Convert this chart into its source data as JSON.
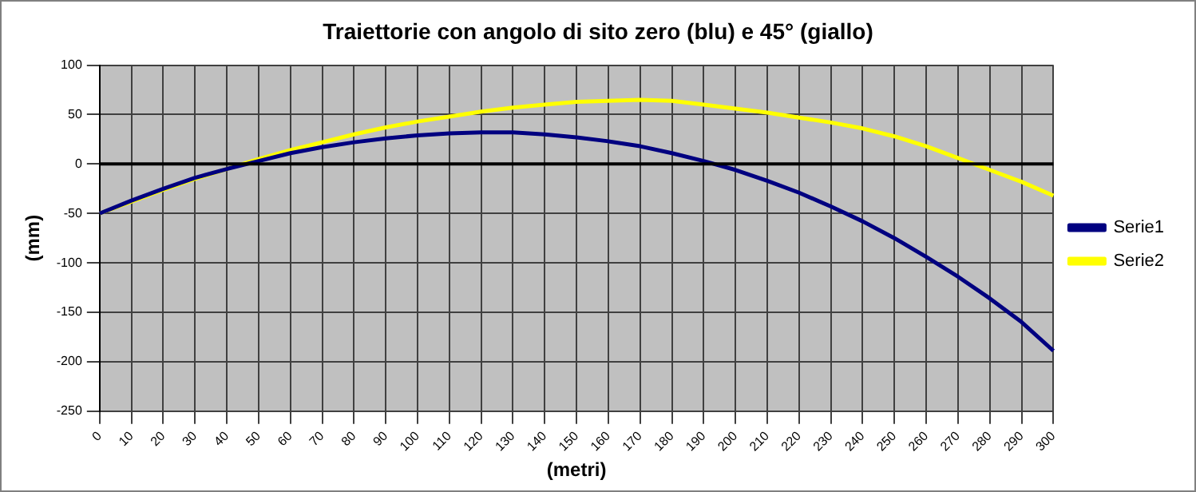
{
  "chart_data": {
    "type": "line",
    "title": "Traiettorie con angolo di sito zero (blu) e 45° (giallo)",
    "xlabel": "(metri)",
    "ylabel": "(mm)",
    "categories": [
      "0",
      "10",
      "20",
      "30",
      "40",
      "50",
      "60",
      "70",
      "80",
      "90",
      "100",
      "110",
      "120",
      "130",
      "140",
      "150",
      "160",
      "170",
      "180",
      "190",
      "200",
      "210",
      "220",
      "230",
      "240",
      "250",
      "260",
      "270",
      "280",
      "290",
      "300"
    ],
    "series": [
      {
        "name": "Serie1",
        "color": "#000080",
        "values": [
          -50,
          -37,
          -25,
          -14,
          -5,
          3,
          11,
          17,
          22,
          26,
          29,
          31,
          32,
          32,
          30,
          27,
          23,
          18,
          11,
          3,
          -6,
          -17,
          -29,
          -43,
          -58,
          -75,
          -94,
          -114,
          -136,
          -160,
          -189
        ]
      },
      {
        "name": "Serie2",
        "color": "#ffff00",
        "values": [
          -50,
          -38,
          -26,
          -15,
          -5,
          5,
          14,
          22,
          30,
          37,
          43,
          48,
          53,
          57,
          60,
          63,
          64,
          65,
          64,
          60,
          56,
          52,
          47,
          42,
          36,
          28,
          18,
          6,
          -6,
          -18,
          -32
        ]
      }
    ],
    "ylim": [
      -250,
      100
    ],
    "yticks": [
      -250,
      -200,
      -150,
      -100,
      -50,
      0,
      50,
      100
    ],
    "grid": true,
    "legend": "right",
    "marker": "none",
    "line_style": "solid"
  }
}
